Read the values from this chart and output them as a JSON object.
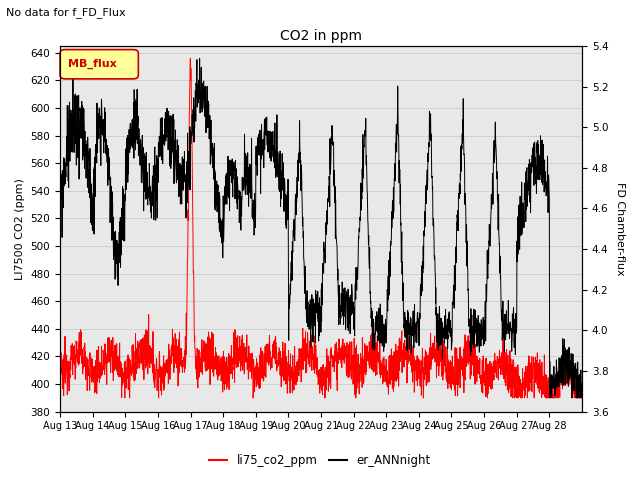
{
  "title": "CO2 in ppm",
  "subtitle": "No data for f_FD_Flux",
  "ylabel_left": "LI7500 CO2 (ppm)",
  "ylabel_right": "FD Chamber-flux",
  "ylim_left": [
    380,
    645
  ],
  "ylim_right": [
    3.6,
    5.4
  ],
  "yticks_left": [
    380,
    400,
    420,
    440,
    460,
    480,
    500,
    520,
    540,
    560,
    580,
    600,
    620,
    640
  ],
  "yticks_right": [
    3.6,
    3.8,
    4.0,
    4.2,
    4.4,
    4.6,
    4.8,
    5.0,
    5.2,
    5.4
  ],
  "xlabel_dates": [
    "Aug 13",
    "Aug 14",
    "Aug 15",
    "Aug 16",
    "Aug 17",
    "Aug 18",
    "Aug 19",
    "Aug 20",
    "Aug 21",
    "Aug 22",
    "Aug 23",
    "Aug 24",
    "Aug 25",
    "Aug 26",
    "Aug 27",
    "Aug 28"
  ],
  "legend_li75": "li75_co2_ppm",
  "legend_er": "er_ANNnight",
  "legend_mb": "MB_flux",
  "mb_legend_bg": "#ffff99",
  "mb_legend_border": "#cc0000",
  "grid_color": "#d0d0d0",
  "background_color": "#e8e8e8",
  "line_red_color": "#ff0000",
  "line_black_color": "#000000"
}
